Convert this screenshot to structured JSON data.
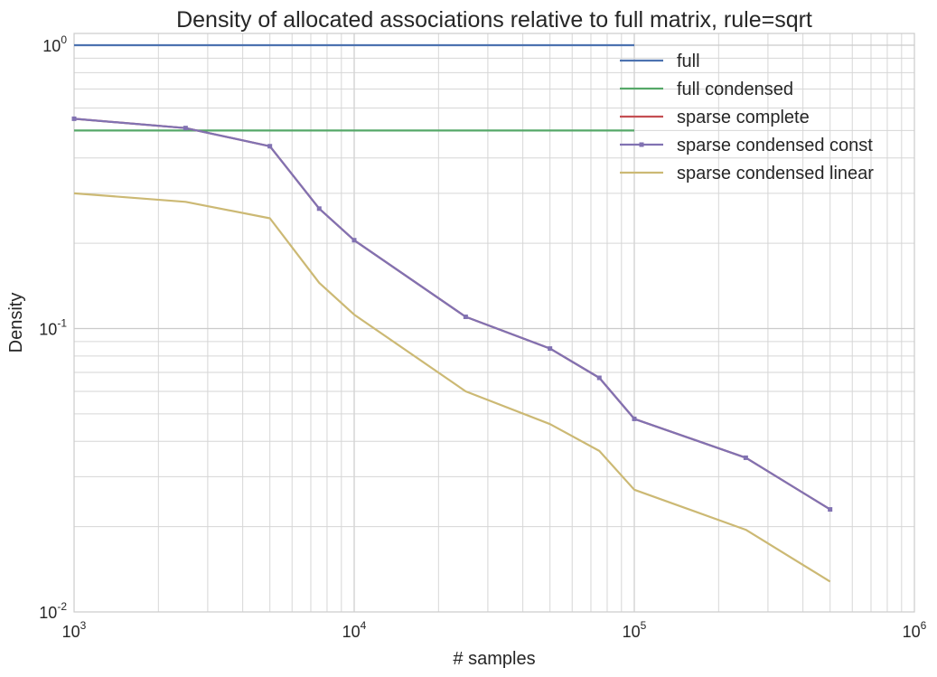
{
  "chart_data": {
    "type": "line",
    "title": "Density of allocated associations relative to full matrix, rule=sqrt",
    "xlabel": "# samples",
    "ylabel": "Density",
    "xscale": "log",
    "yscale": "log",
    "xlim": [
      1000,
      1000000
    ],
    "ylim": [
      0.01,
      1.1
    ],
    "xticks": [
      {
        "value": 1000,
        "base": "10",
        "exp": "3"
      },
      {
        "value": 10000,
        "base": "10",
        "exp": "4"
      },
      {
        "value": 100000,
        "base": "10",
        "exp": "5"
      },
      {
        "value": 1000000,
        "base": "10",
        "exp": "6"
      }
    ],
    "yticks": [
      {
        "value": 0.01,
        "base": "10",
        "exp": "-2"
      },
      {
        "value": 0.1,
        "base": "10",
        "exp": "-1"
      },
      {
        "value": 1,
        "base": "10",
        "exp": "0"
      }
    ],
    "grid": true,
    "legend_position": "top-right",
    "series": [
      {
        "name": "full",
        "color": "#4c72b0",
        "marker": false,
        "x": [
          1000,
          100000
        ],
        "y": [
          1.0,
          1.0
        ]
      },
      {
        "name": "full condensed",
        "color": "#55a868",
        "marker": false,
        "x": [
          1000,
          100000
        ],
        "y": [
          0.5,
          0.5
        ]
      },
      {
        "name": "sparse complete",
        "color": "#c44e52",
        "marker": false,
        "x": [
          1000,
          2500,
          5000,
          7500,
          10000,
          25000,
          50000,
          75000,
          100000,
          250000,
          500000
        ],
        "y": [
          0.55,
          0.51,
          0.44,
          0.265,
          0.205,
          0.11,
          0.085,
          0.067,
          0.048,
          0.035,
          0.023
        ]
      },
      {
        "name": "sparse condensed const",
        "color": "#8172b2",
        "marker": true,
        "x": [
          1000,
          2500,
          5000,
          7500,
          10000,
          25000,
          50000,
          75000,
          100000,
          250000,
          500000
        ],
        "y": [
          0.55,
          0.51,
          0.44,
          0.265,
          0.205,
          0.11,
          0.085,
          0.067,
          0.048,
          0.035,
          0.023
        ]
      },
      {
        "name": "sparse condensed linear",
        "color": "#ccb974",
        "marker": false,
        "x": [
          1000,
          2500,
          5000,
          7500,
          10000,
          25000,
          50000,
          75000,
          100000,
          250000,
          500000
        ],
        "y": [
          0.3,
          0.28,
          0.245,
          0.145,
          0.112,
          0.06,
          0.046,
          0.037,
          0.027,
          0.0195,
          0.0128
        ]
      }
    ]
  }
}
